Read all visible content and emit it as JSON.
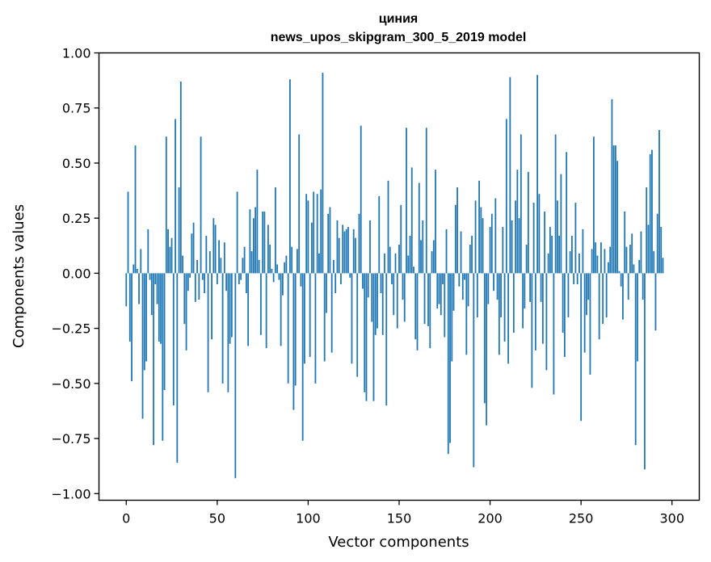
{
  "chart_data": {
    "type": "bar",
    "title_line1": "циния",
    "title_line2": "news_upos_skipgram_300_5_2019 model",
    "xlabel": "Vector components",
    "ylabel": "Components values",
    "xlim": [
      -15,
      315
    ],
    "ylim": [
      -1.03,
      1.0
    ],
    "x_ticks": [
      0,
      50,
      100,
      150,
      200,
      250,
      300
    ],
    "x_tick_labels": [
      "0",
      "50",
      "100",
      "150",
      "200",
      "250",
      "300"
    ],
    "y_ticks": [
      1.0,
      0.75,
      0.5,
      0.25,
      0.0,
      -0.25,
      -0.5,
      -0.75,
      -1.0
    ],
    "y_tick_labels": [
      "1.00",
      "0.75",
      "0.50",
      "0.25",
      "0.00",
      "−0.25",
      "−0.50",
      "−0.75",
      "−1.00"
    ],
    "bar_color": "#1f77b4",
    "values": [
      -0.15,
      0.37,
      -0.31,
      -0.49,
      0.04,
      0.58,
      0.02,
      -0.14,
      0.11,
      -0.66,
      -0.44,
      -0.4,
      0.2,
      -0.03,
      -0.19,
      -0.78,
      -0.05,
      -0.14,
      -0.31,
      -0.32,
      -0.76,
      -0.53,
      0.62,
      0.2,
      0.12,
      0.16,
      -0.6,
      0.7,
      -0.86,
      0.39,
      0.87,
      0.08,
      -0.23,
      -0.35,
      -0.08,
      -0.02,
      0.18,
      0.23,
      -0.13,
      0.06,
      -0.12,
      0.62,
      -0.03,
      -0.09,
      0.17,
      -0.54,
      0.1,
      -0.3,
      0.25,
      0.22,
      -0.05,
      0.15,
      0.07,
      -0.5,
      0.14,
      -0.08,
      -0.54,
      -0.32,
      -0.29,
      0.0,
      -0.93,
      0.37,
      -0.05,
      -0.03,
      0.07,
      0.12,
      -0.09,
      -0.33,
      0.29,
      0.1,
      0.25,
      0.3,
      0.47,
      0.06,
      -0.28,
      0.28,
      0.28,
      -0.34,
      0.22,
      0.13,
      0.02,
      -0.04,
      0.39,
      0.04,
      -0.03,
      -0.33,
      -0.1,
      0.05,
      0.08,
      -0.5,
      0.88,
      0.12,
      -0.62,
      -0.51,
      0.11,
      0.63,
      -0.06,
      -0.76,
      -0.41,
      0.36,
      0.33,
      -0.38,
      0.23,
      0.37,
      -0.5,
      0.36,
      0.09,
      0.38,
      0.91,
      -0.4,
      -0.18,
      0.27,
      0.3,
      -0.36,
      0.06,
      -0.09,
      0.24,
      0.16,
      -0.05,
      0.22,
      0.19,
      0.2,
      0.21,
      -0.02,
      -0.41,
      0.2,
      0.16,
      -0.47,
      0.27,
      0.67,
      -0.07,
      -0.54,
      -0.58,
      -0.11,
      0.24,
      -0.22,
      -0.58,
      -0.28,
      -0.25,
      0.35,
      -0.09,
      -0.28,
      0.09,
      -0.6,
      0.42,
      0.12,
      -0.05,
      -0.19,
      0.09,
      -0.25,
      0.13,
      0.31,
      -0.12,
      -0.22,
      0.66,
      0.08,
      0.17,
      0.48,
      0.03,
      -0.3,
      -0.35,
      0.41,
      0.15,
      0.24,
      -0.23,
      0.66,
      -0.24,
      -0.34,
      0.1,
      0.15,
      0.47,
      -0.16,
      -0.14,
      -0.19,
      -0.05,
      -0.29,
      0.2,
      -0.82,
      -0.77,
      -0.4,
      -0.17,
      0.31,
      0.39,
      -0.06,
      0.19,
      -0.12,
      -0.03,
      -0.37,
      -0.15,
      0.13,
      0.17,
      -0.88,
      0.33,
      -0.2,
      0.42,
      0.3,
      0.25,
      -0.59,
      -0.69,
      -0.14,
      0.21,
      0.27,
      -0.08,
      0.34,
      -0.12,
      -0.37,
      -0.2,
      0.21,
      -0.31,
      0.7,
      -0.41,
      0.89,
      0.24,
      -0.27,
      0.33,
      0.47,
      0.25,
      0.63,
      -0.25,
      -0.16,
      0.13,
      0.46,
      -0.13,
      -0.52,
      0.32,
      -0.35,
      0.9,
      0.36,
      -0.13,
      -0.32,
      0.28,
      -0.44,
      0.09,
      0.21,
      0.17,
      -0.55,
      0.63,
      0.33,
      0.17,
      0.45,
      -0.27,
      -0.38,
      0.55,
      -0.2,
      0.1,
      0.17,
      -0.05,
      0.32,
      -0.05,
      0.09,
      -0.67,
      0.2,
      -0.36,
      -0.19,
      -0.12,
      -0.46,
      0.11,
      0.62,
      0.14,
      0.08,
      -0.3,
      0.14,
      -0.23,
      0.11,
      -0.2,
      0.05,
      0.12,
      0.79,
      0.58,
      0.58,
      0.51,
      0.01,
      -0.06,
      -0.21,
      0.28,
      0.12,
      -0.12,
      0.13,
      0.18,
      0.04,
      -0.78,
      -0.4,
      0.06,
      0.19,
      -0.12,
      -0.89,
      0.39,
      0.22,
      0.54,
      0.56,
      0.1,
      -0.26,
      0.27,
      0.65,
      0.21,
      0.07
    ]
  }
}
